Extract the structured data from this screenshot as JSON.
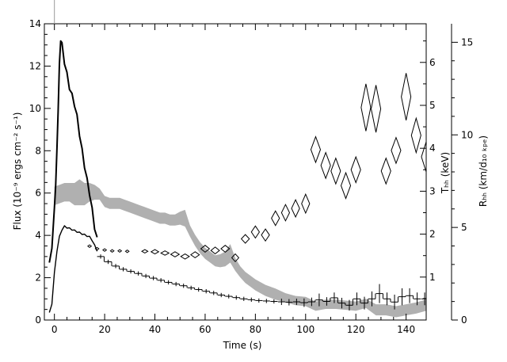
{
  "chart_data": {
    "type": "line",
    "title": "",
    "xlabel": "Time (s)",
    "ylabel_left": "Flux (10⁻⁹ ergs cm⁻² s⁻¹)",
    "ylabel_right_inner": "Tₕₕ (keV)",
    "ylabel_right_outer": "Rₕₕ (km/d₁₀ ₖₚₑ)",
    "xlim": [
      -4,
      148
    ],
    "ylim_left": [
      0,
      14
    ],
    "ylim_right_inner": [
      0,
      6.9
    ],
    "ylim_right_outer": [
      0,
      16
    ],
    "xticks": [
      0,
      20,
      40,
      60,
      80,
      100,
      120,
      140
    ],
    "xtick_labels": [
      "0",
      "20",
      "40",
      "60",
      "80",
      "100",
      "120",
      "140"
    ],
    "yticks_left": [
      0,
      2,
      4,
      6,
      8,
      10,
      12,
      14
    ],
    "ytick_labels_left": [
      "0",
      "2",
      "4",
      "6",
      "8",
      "10",
      "12",
      "14"
    ],
    "yticks_right_inner": [
      1,
      2,
      3,
      4,
      5,
      6
    ],
    "ytick_labels_right_inner": [
      "1",
      "2",
      "3",
      "4",
      "5",
      "6"
    ],
    "yticks_right_outer": [
      0,
      5,
      10,
      15
    ],
    "ytick_labels_right_outer": [
      "0",
      "5",
      "10",
      "15"
    ],
    "series": [
      {
        "name": "",
        "role": "flux-high-res",
        "axis": "left",
        "color": "#000000",
        "x": [
          -2,
          -1,
          0,
          0.5,
          1,
          1.5,
          2,
          2.5,
          3,
          4,
          5,
          6,
          7,
          8,
          9,
          10,
          11,
          12,
          13,
          14,
          15,
          16,
          17
        ],
        "y": [
          2.6,
          3.5,
          5.2,
          6.5,
          8.0,
          10.0,
          12.0,
          13.3,
          13.0,
          12.2,
          11.6,
          11.0,
          10.6,
          10.2,
          9.6,
          8.8,
          8.0,
          7.3,
          6.6,
          6.0,
          5.2,
          4.4,
          3.8
        ]
      },
      {
        "name": "",
        "role": "flux-lower-band",
        "axis": "left",
        "color": "#000000",
        "x": [
          -2,
          -1,
          0,
          1,
          2,
          3,
          4,
          5,
          6,
          7,
          8,
          9,
          10,
          11,
          12,
          13,
          14,
          15,
          16,
          17
        ],
        "y": [
          0.3,
          0.8,
          2.2,
          3.3,
          3.9,
          4.3,
          4.4,
          4.4,
          4.3,
          4.3,
          4.2,
          4.2,
          4.1,
          4.1,
          4.0,
          4.0,
          3.9,
          3.8,
          3.5,
          3.3
        ]
      },
      {
        "name": "",
        "role": "flux-binned-steps",
        "axis": "left",
        "color": "#000000",
        "step_width": 2.8,
        "x": [
          17,
          20,
          23,
          26,
          29,
          32,
          35,
          38,
          41,
          44,
          47,
          50,
          53,
          56,
          59,
          62,
          65,
          68,
          71,
          74,
          77,
          80,
          83,
          86,
          89,
          92,
          95,
          98,
          101,
          104,
          107,
          110,
          113,
          116,
          119,
          122,
          125,
          128,
          131,
          134,
          137,
          140,
          143,
          146
        ],
        "y": [
          3.0,
          2.75,
          2.55,
          2.4,
          2.3,
          2.2,
          2.08,
          1.98,
          1.88,
          1.78,
          1.7,
          1.62,
          1.52,
          1.44,
          1.36,
          1.28,
          1.18,
          1.12,
          1.06,
          1.0,
          0.96,
          0.92,
          0.9,
          0.88,
          0.86,
          0.84,
          0.86,
          0.82,
          0.86,
          0.95,
          0.88,
          1.05,
          0.8,
          0.7,
          1.0,
          0.8,
          1.0,
          1.25,
          1.0,
          0.85,
          1.1,
          1.15,
          1.0,
          1.0
        ],
        "err": [
          0.1,
          0.1,
          0.1,
          0.1,
          0.1,
          0.1,
          0.1,
          0.1,
          0.1,
          0.1,
          0.1,
          0.1,
          0.1,
          0.1,
          0.1,
          0.1,
          0.1,
          0.1,
          0.1,
          0.1,
          0.1,
          0.1,
          0.1,
          0.1,
          0.15,
          0.15,
          0.15,
          0.2,
          0.2,
          0.3,
          0.2,
          0.25,
          0.25,
          0.25,
          0.3,
          0.3,
          0.35,
          0.45,
          0.3,
          0.35,
          0.4,
          0.35,
          0.3,
          0.3
        ]
      },
      {
        "name": "",
        "role": "radius-band",
        "axis": "right_outer",
        "color": "#b0b0b0",
        "x": [
          0,
          2,
          4,
          6,
          8,
          10,
          12,
          14,
          16,
          18,
          20,
          22,
          24,
          26,
          28,
          30,
          32,
          34,
          36,
          38,
          40,
          42,
          44,
          46,
          48,
          50,
          52,
          54,
          56,
          58,
          60,
          62,
          64,
          66,
          68,
          70,
          72,
          74,
          76,
          78,
          80,
          84,
          88,
          92,
          96,
          100,
          104,
          108,
          112,
          116,
          120,
          124,
          128,
          132,
          136,
          140,
          144,
          148
        ],
        "y": [
          6.7,
          6.8,
          6.9,
          6.9,
          6.8,
          6.9,
          6.8,
          6.9,
          6.9,
          6.8,
          6.4,
          6.3,
          6.3,
          6.3,
          6.2,
          6.1,
          6.0,
          5.9,
          5.8,
          5.7,
          5.6,
          5.5,
          5.5,
          5.4,
          5.4,
          5.5,
          5.5,
          4.8,
          4.3,
          3.9,
          3.6,
          3.4,
          3.2,
          3.2,
          3.3,
          3.6,
          3.0,
          2.6,
          2.3,
          2.1,
          1.9,
          1.6,
          1.4,
          1.2,
          1.05,
          1.0,
          0.75,
          0.85,
          0.85,
          0.8,
          0.75,
          0.9,
          0.55,
          0.55,
          0.45,
          0.55,
          0.65,
          0.8
        ],
        "half_width": [
          0.5,
          0.5,
          0.5,
          0.5,
          0.6,
          0.7,
          0.6,
          0.5,
          0.4,
          0.3,
          0.3,
          0.3,
          0.3,
          0.3,
          0.3,
          0.3,
          0.3,
          0.3,
          0.3,
          0.3,
          0.3,
          0.3,
          0.3,
          0.3,
          0.3,
          0.35,
          0.45,
          0.3,
          0.3,
          0.3,
          0.3,
          0.3,
          0.3,
          0.35,
          0.4,
          0.5,
          0.35,
          0.3,
          0.3,
          0.3,
          0.3,
          0.3,
          0.3,
          0.25,
          0.25,
          0.25,
          0.25,
          0.25,
          0.25,
          0.25,
          0.25,
          0.25,
          0.3,
          0.3,
          0.3,
          0.3,
          0.3,
          0.3
        ]
      },
      {
        "name": "",
        "role": "temperature-diamonds",
        "axis": "right_inner",
        "color": "#000000",
        "x": [
          14,
          17,
          20,
          23,
          26,
          29,
          36,
          40,
          44,
          48,
          52,
          56,
          60,
          64,
          68,
          72,
          76,
          80,
          84,
          88,
          92,
          96,
          100,
          104,
          108,
          112,
          116,
          120,
          124,
          128,
          132,
          136,
          140,
          144,
          148
        ],
        "y": [
          1.72,
          1.66,
          1.63,
          1.61,
          1.61,
          1.6,
          1.6,
          1.59,
          1.56,
          1.53,
          1.48,
          1.52,
          1.66,
          1.62,
          1.66,
          1.45,
          1.89,
          2.05,
          1.98,
          2.37,
          2.5,
          2.6,
          2.71,
          3.97,
          3.6,
          3.47,
          3.13,
          3.5,
          4.95,
          4.92,
          3.47,
          3.95,
          5.2,
          4.3,
          3.8
        ],
        "dx": [
          0.7,
          0.7,
          0.7,
          0.7,
          0.7,
          0.7,
          1.2,
          1.5,
          1.6,
          1.7,
          1.7,
          1.7,
          1.7,
          1.7,
          1.7,
          1.4,
          1.6,
          1.6,
          1.6,
          1.6,
          1.6,
          1.6,
          1.6,
          1.9,
          1.9,
          1.9,
          1.9,
          1.9,
          1.9,
          1.9,
          1.9,
          1.9,
          1.9,
          1.9,
          1.9
        ],
        "dy": [
          0.03,
          0.03,
          0.03,
          0.03,
          0.03,
          0.03,
          0.04,
          0.05,
          0.05,
          0.06,
          0.06,
          0.07,
          0.08,
          0.08,
          0.08,
          0.09,
          0.1,
          0.14,
          0.14,
          0.17,
          0.19,
          0.2,
          0.22,
          0.3,
          0.3,
          0.3,
          0.3,
          0.3,
          0.55,
          0.55,
          0.3,
          0.3,
          0.55,
          0.4,
          0.35
        ]
      }
    ]
  }
}
